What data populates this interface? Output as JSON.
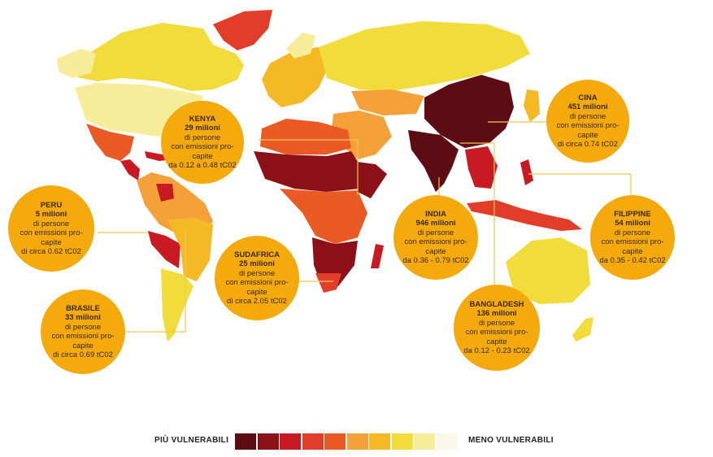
{
  "callouts": [
    {
      "id": "kenya",
      "country": "KENYA",
      "lines": [
        "29 milioni",
        "di persone",
        "con emissioni pro-",
        "capite",
        "da 0.12 a 0.48 tC02"
      ]
    },
    {
      "id": "cina",
      "country": "CINA",
      "lines": [
        "451 milioni",
        "di persone",
        "con emissioni pro-",
        "capite",
        "di circa 0.74 tC02"
      ]
    },
    {
      "id": "peru",
      "country": "PERU",
      "lines": [
        "5 milioni",
        "di persone",
        "con emissioni pro-",
        "capite",
        "di circa 0.62 tC02"
      ]
    },
    {
      "id": "india",
      "country": "INDIA",
      "lines": [
        "946 milioni",
        "di persone",
        "con emissioni pro-",
        "capite",
        "da 0.36 - 0.79 tC02"
      ]
    },
    {
      "id": "filippine",
      "country": "FILIPPINE",
      "lines": [
        "54 milioni",
        "di persone",
        "con emissioni pro-",
        "capite",
        "da 0.35 - 0.42 tC02"
      ]
    },
    {
      "id": "sudafrica",
      "country": "SUDAFRICA",
      "lines": [
        "25 milioni",
        "di persone",
        "con emissioni pro-",
        "capite",
        "di circa 2.05 tC02"
      ]
    },
    {
      "id": "brasile",
      "country": "BRASILE",
      "lines": [
        "33 milioni",
        "di persone",
        "con emissioni pro-",
        "capite",
        "di circa 0.69 tC02"
      ]
    },
    {
      "id": "bangladesh",
      "country": "BANGLADESH",
      "lines": [
        "136 milioni",
        "di persone",
        "con emissioni pro-",
        "capite",
        "da 0.12 - 0.23 tC02"
      ]
    }
  ],
  "legend": {
    "left_label": "PIÙ VULNERABILI",
    "right_label": "MENO VULNERABILI",
    "colors": [
      "#5c0c12",
      "#8c1018",
      "#c81a22",
      "#e23d28",
      "#ea5a24",
      "#f4a13a",
      "#f4b925",
      "#f2dc3c",
      "#f6ec9a",
      "#f7f7ea"
    ]
  },
  "colors": {
    "bubble": "#f4a90c",
    "leader_line": "#f0c850"
  }
}
